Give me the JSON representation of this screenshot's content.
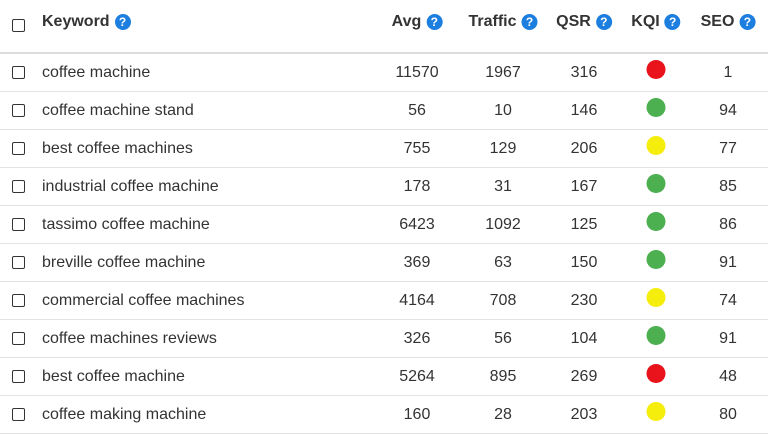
{
  "table": {
    "help_icon": "?",
    "header": [
      "Keyword",
      "Avg",
      "Traffic",
      "QSR",
      "KQI",
      "SEO"
    ],
    "rows": [
      {
        "keyword": "coffee machine",
        "avg": 11570,
        "traffic": 1967,
        "qsr": 316,
        "kqi": "#e8131b",
        "seo": 1
      },
      {
        "keyword": "coffee machine stand",
        "avg": 56,
        "traffic": 10,
        "qsr": 146,
        "kqi": "#4caf50",
        "seo": 94
      },
      {
        "keyword": "best coffee machines",
        "avg": 755,
        "traffic": 129,
        "qsr": 206,
        "kqi": "#f5ee0c",
        "seo": 77
      },
      {
        "keyword": "industrial coffee machine",
        "avg": 178,
        "traffic": 31,
        "qsr": 167,
        "kqi": "#4caf50",
        "seo": 85
      },
      {
        "keyword": "tassimo coffee machine",
        "avg": 6423,
        "traffic": 1092,
        "qsr": 125,
        "kqi": "#4caf50",
        "seo": 86
      },
      {
        "keyword": "breville coffee machine",
        "avg": 369,
        "traffic": 63,
        "qsr": 150,
        "kqi": "#4caf50",
        "seo": 91
      },
      {
        "keyword": "commercial coffee machines",
        "avg": 4164,
        "traffic": 708,
        "qsr": 230,
        "kqi": "#f5ee0c",
        "seo": 74
      },
      {
        "keyword": "coffee machines reviews",
        "avg": 326,
        "traffic": 56,
        "qsr": 104,
        "kqi": "#4caf50",
        "seo": 91
      },
      {
        "keyword": "best coffee machine",
        "avg": 5264,
        "traffic": 895,
        "qsr": 269,
        "kqi": "#e8131b",
        "seo": 48
      },
      {
        "keyword": "coffee making machine",
        "avg": 160,
        "traffic": 28,
        "qsr": 203,
        "kqi": "#f5ee0c",
        "seo": 80
      }
    ]
  }
}
